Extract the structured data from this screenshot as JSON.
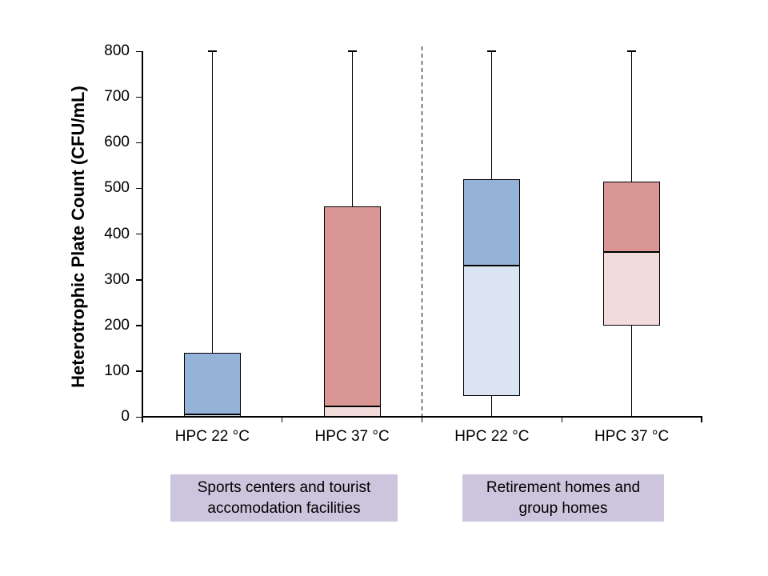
{
  "chart_data": {
    "type": "box",
    "title": "",
    "ylabel": "Heterotrophic Plate Count (CFU/mL)",
    "xlabel": "",
    "ylim": [
      0,
      800
    ],
    "yticks": [
      0,
      100,
      200,
      300,
      400,
      500,
      600,
      700,
      800
    ],
    "grid": false,
    "legend": "none",
    "categories": [
      "HPC 22 °C",
      "HPC 37 °C",
      "HPC 22 °C",
      "HPC 37 °C"
    ],
    "groups": [
      {
        "label_line1": "Sports centers and tourist",
        "label_line2": "accomodation facilities",
        "category_indexes": [
          0,
          1
        ]
      },
      {
        "label_line1": "Retirement homes and",
        "label_line2": "group homes",
        "category_indexes": [
          2,
          3
        ]
      }
    ],
    "boxes": [
      {
        "category": "HPC 22 °C",
        "group": "Sports centers and tourist accomodation facilities",
        "series": "hpc22",
        "whisker_low": 0,
        "q1": 0,
        "median": 5,
        "q3": 140,
        "whisker_high": 800
      },
      {
        "category": "HPC 37 °C",
        "group": "Sports centers and tourist accomodation facilities",
        "series": "hpc37",
        "whisker_low": 0,
        "q1": 0,
        "median": 22,
        "q3": 460,
        "whisker_high": 800
      },
      {
        "category": "HPC 22 °C",
        "group": "Retirement homes and group homes",
        "series": "hpc22",
        "whisker_low": 0,
        "q1": 45,
        "median": 330,
        "q3": 520,
        "whisker_high": 800
      },
      {
        "category": "HPC 37 °C",
        "group": "Retirement homes and group homes",
        "series": "hpc37",
        "whisker_low": 0,
        "q1": 200,
        "median": 360,
        "q3": 515,
        "whisker_high": 800
      }
    ],
    "separator": {
      "between_groups": true,
      "style": "dashed"
    },
    "colors": {
      "hpc22_upper": "#95B3D7",
      "hpc22_lower": "#DBE5F1",
      "hpc37_upper": "#D99694",
      "hpc37_lower": "#F2DCDB",
      "axis": "#000000",
      "group_label_bg": "#CDC5DD",
      "background": "#FFFFFF"
    }
  }
}
